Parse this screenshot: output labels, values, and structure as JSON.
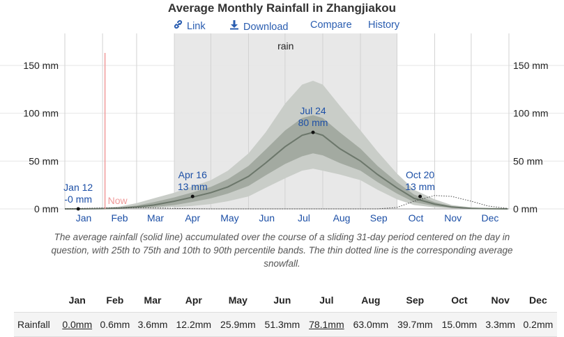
{
  "page": {
    "title": "Average Monthly Rainfall in Zhangjiakou",
    "links": [
      {
        "label": "Link",
        "icon": "link-icon"
      },
      {
        "label": "Download",
        "icon": "download-icon"
      },
      {
        "label": "Compare"
      },
      {
        "label": "History"
      }
    ],
    "caption": "The average rainfall (solid line) accumulated over the course of a sliding 31-day period centered on the day in question, with 25th to 75th and 10th to 90th percentile bands. The thin dotted line is the corresponding average snowfall."
  },
  "chart_data": {
    "type": "area",
    "band_label": "rain",
    "now_label": "Now",
    "yticks": [
      {
        "value": 0,
        "label": "0 mm"
      },
      {
        "value": 50,
        "label": "50 mm"
      },
      {
        "value": 100,
        "label": "100 mm"
      },
      {
        "value": 150,
        "label": "150 mm"
      }
    ],
    "ylim": [
      0,
      150
    ],
    "xticks": [
      "Jan",
      "Feb",
      "Mar",
      "Apr",
      "May",
      "Jun",
      "Jul",
      "Aug",
      "Sep",
      "Oct",
      "Nov",
      "Dec"
    ],
    "x": [
      "Jan 1",
      "Jan 15",
      "Feb 1",
      "Feb 15",
      "Mar 1",
      "Mar 15",
      "Apr 1",
      "Apr 15",
      "May 1",
      "May 15",
      "Jun 1",
      "Jun 15",
      "Jul 1",
      "Jul 15",
      "Jul 24",
      "Aug 1",
      "Aug 15",
      "Sep 1",
      "Sep 15",
      "Oct 1",
      "Oct 15",
      "Nov 1",
      "Nov 15",
      "Dec 1",
      "Dec 15",
      "Dec 31"
    ],
    "series": [
      {
        "role": "p10",
        "values": [
          0,
          0,
          0,
          0.2,
          0.5,
          1,
          2,
          3,
          5,
          8,
          13,
          22,
          32,
          40,
          42,
          40,
          36,
          30,
          20,
          10,
          4,
          1.5,
          0.5,
          0.2,
          0,
          0
        ]
      },
      {
        "role": "p25",
        "values": [
          0,
          0,
          0.1,
          0.4,
          1,
          2,
          4,
          7,
          11,
          16,
          24,
          35,
          47,
          55,
          58,
          56,
          48,
          40,
          28,
          16,
          7,
          3,
          1,
          0.3,
          0.1,
          0
        ]
      },
      {
        "role": "median",
        "values": [
          0,
          0,
          0.3,
          0.8,
          2,
          4,
          8,
          12,
          17,
          23,
          34,
          48,
          65,
          77,
          80,
          77,
          63,
          50,
          36,
          22,
          11,
          5,
          2,
          0.5,
          0.2,
          0
        ]
      },
      {
        "role": "p75",
        "values": [
          0,
          0.2,
          0.6,
          1.5,
          3.5,
          7,
          12,
          17,
          23,
          31,
          45,
          62,
          82,
          95,
          98,
          95,
          80,
          63,
          45,
          28,
          15,
          7,
          3,
          1,
          0.4,
          0
        ]
      },
      {
        "role": "p90",
        "values": [
          0,
          0.3,
          1,
          2.5,
          6,
          11,
          17,
          23,
          30,
          40,
          58,
          80,
          110,
          130,
          134,
          130,
          108,
          82,
          60,
          37,
          20,
          10,
          4,
          1.5,
          0.5,
          0
        ]
      },
      {
        "role": "snowfall",
        "values": [
          0,
          0.5,
          1,
          1.2,
          1.2,
          1,
          0.5,
          0.2,
          0,
          0,
          0,
          0,
          0,
          0,
          0,
          0,
          0,
          0,
          0,
          1.5,
          8,
          14,
          13,
          8,
          3,
          0.5
        ]
      }
    ],
    "annotations": [
      {
        "date": "Jan 12",
        "value": 0,
        "line1": "Jan 12",
        "line2": "-0 mm"
      },
      {
        "date": "Apr 16",
        "value": 13,
        "line1": "Apr 16",
        "line2": "13 mm"
      },
      {
        "date": "Jul 24",
        "value": 80,
        "line1": "Jul 24",
        "line2": "80 mm"
      },
      {
        "date": "Oct 20",
        "value": 13,
        "line1": "Oct 20",
        "line2": "13 mm"
      }
    ],
    "now_date": "Feb 3",
    "band_range": [
      "Apr 1",
      "Oct 1"
    ],
    "colors": {
      "band_bg": "#e8e8e8",
      "outer_band": "#c9cdc8",
      "inner_band": "#a3aaa1",
      "median": "#6c776b",
      "now_line": "#ef9a9a",
      "annotation_text": "#1c4fa6"
    }
  },
  "table": {
    "months": [
      "Jan",
      "Feb",
      "Mar",
      "Apr",
      "May",
      "Jun",
      "Jul",
      "Aug",
      "Sep",
      "Oct",
      "Nov",
      "Dec"
    ],
    "row_label": "Rainfall",
    "values": [
      "0.0mm",
      "0.6mm",
      "3.6mm",
      "12.2mm",
      "25.9mm",
      "51.3mm",
      "78.1mm",
      "63.0mm",
      "39.7mm",
      "15.0mm",
      "3.3mm",
      "0.2mm"
    ],
    "highlighted": [
      0,
      6
    ]
  }
}
